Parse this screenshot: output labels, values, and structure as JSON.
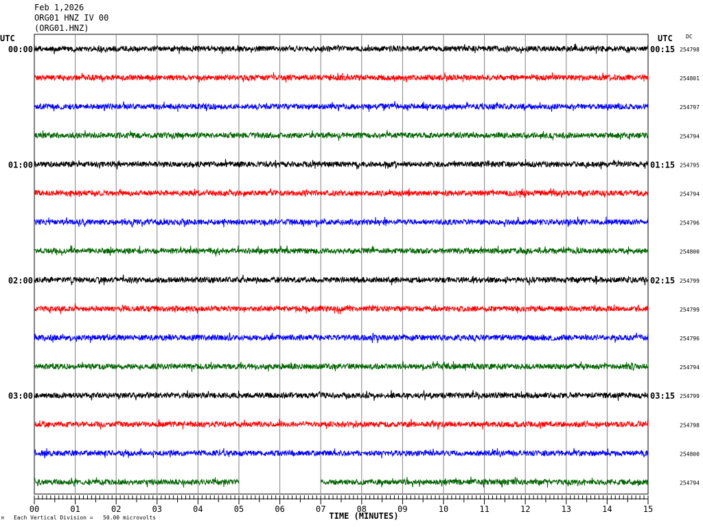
{
  "header": {
    "date": "Feb 1,2026",
    "station": "ORG01 HNZ IV 00",
    "channel": "(ORG01.HNZ)"
  },
  "utc_left": "UTC",
  "utc_right": "UTC",
  "dc_label": "DC",
  "corner_mark": "M",
  "division_note": "Each Vertical Division =   50.00 microvolts",
  "chart_data": {
    "type": "line",
    "title": "",
    "xlabel": "TIME (MINUTES)",
    "ylabel": "",
    "xlim": [
      0,
      15
    ],
    "x_ticks": [
      "00",
      "01",
      "02",
      "03",
      "04",
      "05",
      "06",
      "07",
      "08",
      "09",
      "10",
      "11",
      "12",
      "13",
      "14",
      "15"
    ],
    "grid": true,
    "series_colors": [
      "#000000",
      "#ff0000",
      "#0000ff",
      "#006400"
    ],
    "traces": [
      {
        "left_label": "00:00",
        "right_label": "00:15",
        "dc": "254798",
        "color": "#000000"
      },
      {
        "left_label": "",
        "right_label": "",
        "dc": "254801",
        "color": "#ff0000"
      },
      {
        "left_label": "",
        "right_label": "",
        "dc": "254797",
        "color": "#0000ff"
      },
      {
        "left_label": "",
        "right_label": "",
        "dc": "254794",
        "color": "#006400"
      },
      {
        "left_label": "01:00",
        "right_label": "01:15",
        "dc": "254795",
        "color": "#000000"
      },
      {
        "left_label": "",
        "right_label": "",
        "dc": "254794",
        "color": "#ff0000"
      },
      {
        "left_label": "",
        "right_label": "",
        "dc": "254796",
        "color": "#0000ff"
      },
      {
        "left_label": "",
        "right_label": "",
        "dc": "254800",
        "color": "#006400"
      },
      {
        "left_label": "02:00",
        "right_label": "02:15",
        "dc": "254799",
        "color": "#000000"
      },
      {
        "left_label": "",
        "right_label": "",
        "dc": "254799",
        "color": "#ff0000"
      },
      {
        "left_label": "",
        "right_label": "",
        "dc": "254796",
        "color": "#0000ff"
      },
      {
        "left_label": "",
        "right_label": "",
        "dc": "254794",
        "color": "#006400"
      },
      {
        "left_label": "03:00",
        "right_label": "03:15",
        "dc": "254799",
        "color": "#000000"
      },
      {
        "left_label": "",
        "right_label": "",
        "dc": "254798",
        "color": "#ff0000"
      },
      {
        "left_label": "",
        "right_label": "",
        "dc": "254800",
        "color": "#0000ff"
      },
      {
        "left_label": "",
        "right_label": "",
        "dc": "254794",
        "color": "#006400",
        "gaps": [
          [
            5.0,
            7.0
          ]
        ]
      }
    ]
  }
}
